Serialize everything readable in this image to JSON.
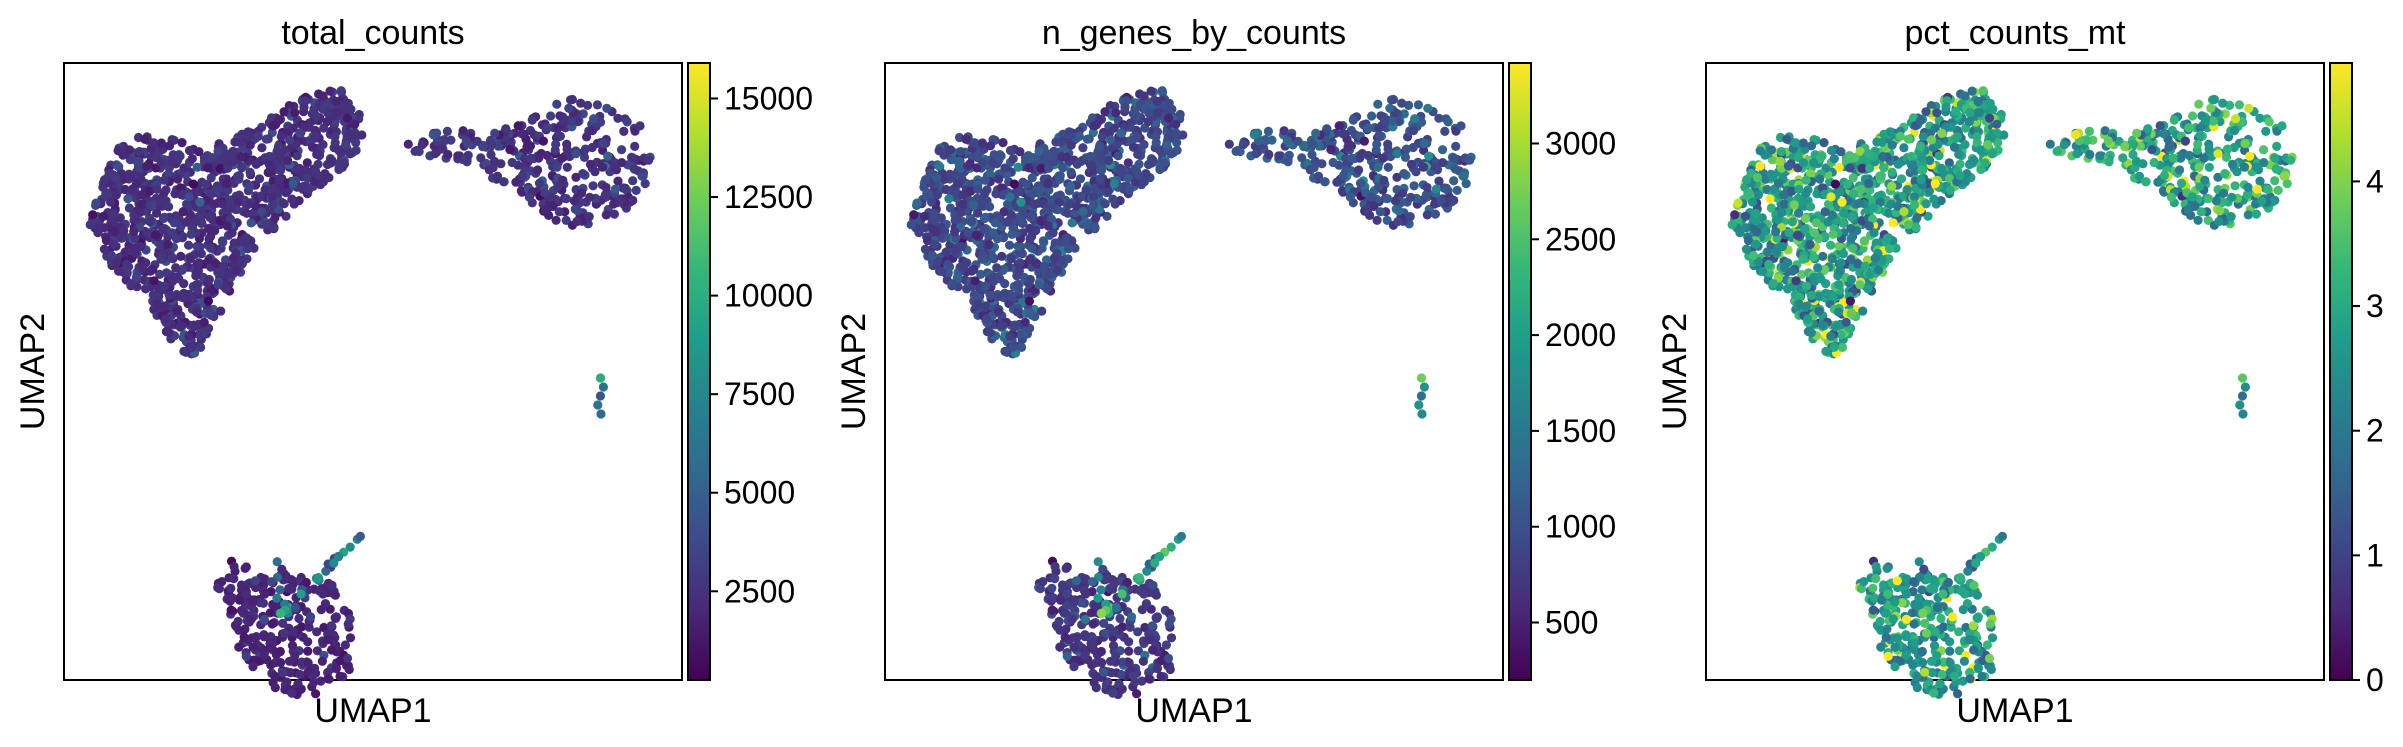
{
  "chart_data": [
    {
      "type": "scatter",
      "title": "total_counts",
      "xlabel": "UMAP1",
      "ylabel": "UMAP2",
      "colormap": "viridis",
      "colorbar": {
        "range": [
          250,
          15900
        ],
        "ticks": [
          2500,
          5000,
          7500,
          10000,
          12500,
          15000
        ]
      },
      "clusters": [
        {
          "region": "upper-left",
          "points": 1100,
          "color_value_typical": 2400,
          "color_value_spread": 900
        },
        {
          "region": "upper-right",
          "points": 340,
          "color_value_typical": 2600,
          "color_value_spread": 1000
        },
        {
          "region": "bottom",
          "points": 280,
          "color_value_typical": 1800,
          "color_value_spread": 700
        },
        {
          "region": "bottom-strand",
          "points": 26,
          "color_value_typical": 6000,
          "color_value_spread": 3000
        }
      ]
    },
    {
      "type": "scatter",
      "title": "n_genes_by_counts",
      "xlabel": "UMAP1",
      "ylabel": "UMAP2",
      "colormap": "viridis",
      "colorbar": {
        "range": [
          200,
          3420
        ],
        "ticks": [
          500,
          1000,
          1500,
          2000,
          2500,
          3000
        ]
      },
      "clusters": [
        {
          "region": "upper-left",
          "points": 1100,
          "color_value_typical": 900,
          "color_value_spread": 300
        },
        {
          "region": "upper-right",
          "points": 340,
          "color_value_typical": 1000,
          "color_value_spread": 350
        },
        {
          "region": "bottom",
          "points": 280,
          "color_value_typical": 700,
          "color_value_spread": 250
        },
        {
          "region": "bottom-strand",
          "points": 26,
          "color_value_typical": 1800,
          "color_value_spread": 700
        }
      ]
    },
    {
      "type": "scatter",
      "title": "pct_counts_mt",
      "xlabel": "UMAP1",
      "ylabel": "UMAP2",
      "colormap": "viridis",
      "colorbar": {
        "range": [
          0,
          4.95
        ],
        "ticks": [
          0,
          1,
          2,
          3,
          4
        ]
      },
      "clusters": [
        {
          "region": "upper-left",
          "points": 1100,
          "color_value_typical": 2.7,
          "color_value_spread": 1.3
        },
        {
          "region": "upper-right",
          "points": 340,
          "color_value_typical": 2.9,
          "color_value_spread": 1.2
        },
        {
          "region": "bottom",
          "points": 280,
          "color_value_typical": 2.6,
          "color_value_spread": 1.2
        },
        {
          "region": "bottom-strand",
          "points": 26,
          "color_value_typical": 2.4,
          "color_value_spread": 1.0
        }
      ]
    }
  ]
}
